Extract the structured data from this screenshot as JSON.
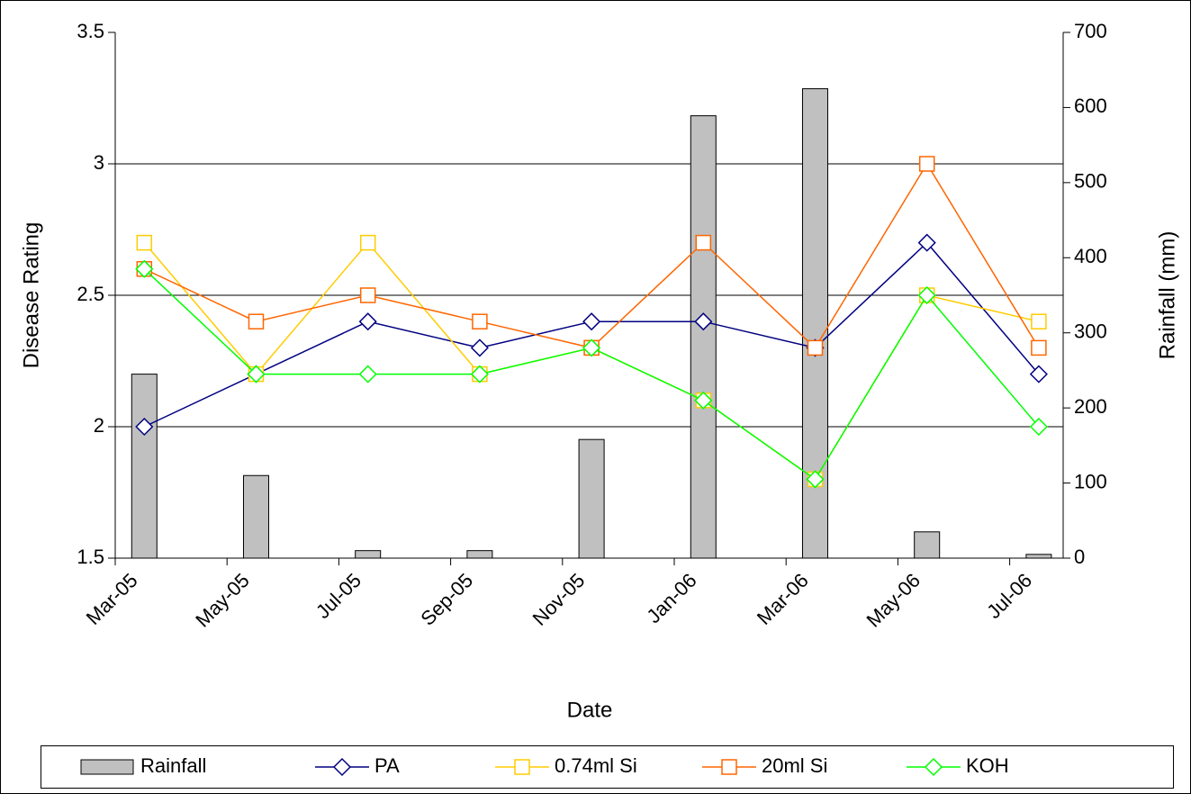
{
  "chart_data": {
    "type": "combo",
    "x_label": "Date",
    "y_label": "Disease Rating",
    "y2_label": "Rainfall (mm)",
    "categories": [
      "Mar-05",
      "May-05",
      "Jul-05",
      "Sep-05",
      "Nov-05",
      "Jan-06",
      "Mar-06",
      "May-06",
      "Jul-06"
    ],
    "ylim": [
      1.5,
      3.5
    ],
    "yticks": [
      1.5,
      2,
      2.5,
      3,
      3.5
    ],
    "y2lim": [
      0,
      700
    ],
    "y2ticks": [
      0,
      100,
      200,
      300,
      400,
      500,
      600,
      700
    ],
    "grid": true,
    "legend": "bottom",
    "series": [
      {
        "name": "Rainfall",
        "type": "bar",
        "axis": "y2",
        "color": "#c0c0c0",
        "values": [
          245,
          110,
          10,
          10,
          158,
          589,
          625,
          35,
          5
        ]
      },
      {
        "name": "PA",
        "type": "line",
        "marker": "diamond",
        "color": "#000080",
        "values": [
          2.0,
          2.2,
          2.4,
          2.3,
          2.4,
          2.4,
          2.3,
          2.7,
          2.2
        ]
      },
      {
        "name": "0.74ml Si",
        "type": "line",
        "marker": "square",
        "color": "#ffcc00",
        "values": [
          2.7,
          2.2,
          2.7,
          2.2,
          2.3,
          2.1,
          1.8,
          2.5,
          2.4
        ]
      },
      {
        "name": "20ml Si",
        "type": "line",
        "marker": "square",
        "color": "#ff6600",
        "values": [
          2.6,
          2.4,
          2.5,
          2.4,
          2.3,
          2.7,
          2.3,
          3.0,
          2.3
        ]
      },
      {
        "name": "KOH",
        "type": "line",
        "marker": "diamond",
        "color": "#00ff00",
        "values": [
          2.6,
          2.2,
          2.2,
          2.2,
          2.3,
          2.1,
          1.8,
          2.5,
          2.0
        ]
      }
    ]
  }
}
